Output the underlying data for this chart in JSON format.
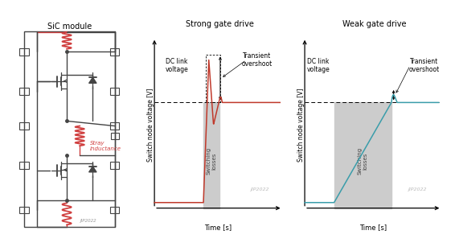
{
  "title_left": "SiC module",
  "title_mid": "Strong gate drive",
  "title_right": "Weak gate drive",
  "ylabel": "Switch node voltage [V]",
  "xlabel": "Time [s]",
  "dc_link_label": "DC link\nvoltage",
  "transient_label": "Transient\novershoot",
  "switching_label": "Switching\nlosses",
  "watermark": "JIP2022",
  "strong_color": "#c0392b",
  "weak_color": "#3a9daa",
  "stray_color": "#d04040",
  "circuit_color": "#444444",
  "bg_color": "#ffffff",
  "switching_region_color": "#cccccc"
}
